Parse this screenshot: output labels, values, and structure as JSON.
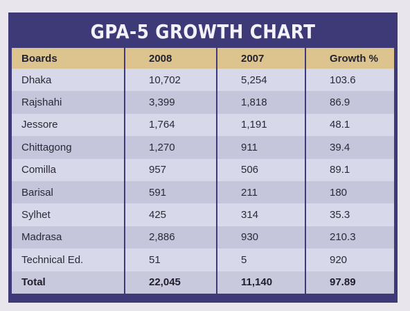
{
  "title": "GPA-5 GROWTH CHART",
  "columns": [
    "Boards",
    "2008",
    "2007",
    "Growth %"
  ],
  "rows": [
    [
      "Dhaka",
      "10,702",
      "5,254",
      "103.6"
    ],
    [
      "Rajshahi",
      "3,399",
      "1,818",
      "86.9"
    ],
    [
      "Jessore",
      "1,764",
      "1,191",
      "48.1"
    ],
    [
      "Chittagong",
      "1,270",
      "911",
      "39.4"
    ],
    [
      "Comilla",
      "957",
      "506",
      "89.1"
    ],
    [
      "Barisal",
      "591",
      "211",
      "180"
    ],
    [
      "Sylhet",
      "425",
      "314",
      "35.3"
    ],
    [
      "Madrasa",
      "2,886",
      "930",
      "210.3"
    ],
    [
      "Technical Ed.",
      "51",
      "5",
      "920"
    ],
    [
      "Total",
      "22,045",
      "11,140",
      "97.89"
    ]
  ],
  "colors": {
    "frame": "#3e3a78",
    "header_band": "#ddc48f",
    "row_light": "#d7d8e9",
    "row_dark": "#c5c5dc"
  }
}
